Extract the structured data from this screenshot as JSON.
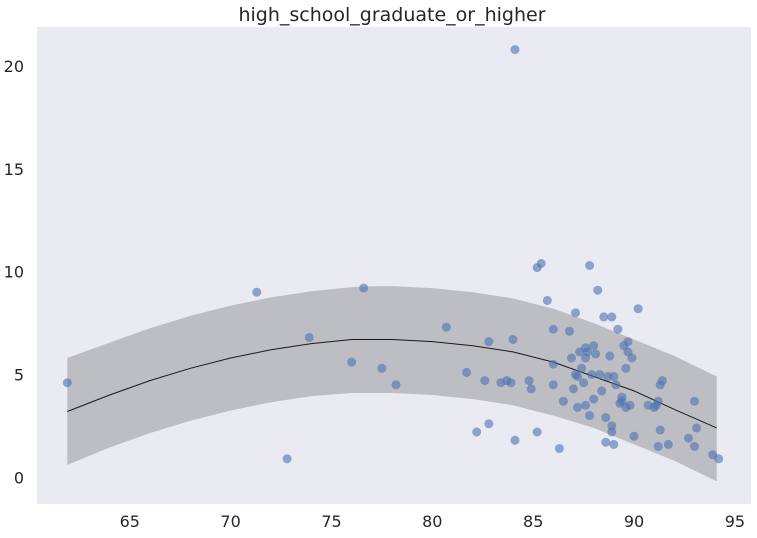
{
  "chart_data": {
    "type": "scatter",
    "title": "high_school_graduate_or_higher",
    "xlabel": "",
    "ylabel": "",
    "xlim": [
      60.4,
      95.8
    ],
    "ylim": [
      -1.3,
      21.9
    ],
    "xticks": [
      65,
      70,
      75,
      80,
      85,
      90,
      95
    ],
    "yticks": [
      0,
      5,
      10,
      15,
      20
    ],
    "grid": false,
    "colors": {
      "background": "#eaeaf2",
      "points": "#4c72b0",
      "band": "#a9a9b0",
      "fit_line": "#1a1a1a"
    },
    "points": [
      [
        61.9,
        4.6
      ],
      [
        71.3,
        9.0
      ],
      [
        72.8,
        0.9
      ],
      [
        73.9,
        6.8
      ],
      [
        76.0,
        5.6
      ],
      [
        76.6,
        9.2
      ],
      [
        77.5,
        5.3
      ],
      [
        78.2,
        4.5
      ],
      [
        80.7,
        7.3
      ],
      [
        81.7,
        5.1
      ],
      [
        82.2,
        2.2
      ],
      [
        82.6,
        4.7
      ],
      [
        82.8,
        2.6
      ],
      [
        82.8,
        6.6
      ],
      [
        83.4,
        4.6
      ],
      [
        83.7,
        4.7
      ],
      [
        83.9,
        4.6
      ],
      [
        84.0,
        6.7
      ],
      [
        84.1,
        20.8
      ],
      [
        84.1,
        1.8
      ],
      [
        84.8,
        4.7
      ],
      [
        84.9,
        4.3
      ],
      [
        85.2,
        2.2
      ],
      [
        85.2,
        10.2
      ],
      [
        85.4,
        10.4
      ],
      [
        85.7,
        8.6
      ],
      [
        86.0,
        7.2
      ],
      [
        86.0,
        5.5
      ],
      [
        86.0,
        4.5
      ],
      [
        86.3,
        1.4
      ],
      [
        86.5,
        3.7
      ],
      [
        86.8,
        7.1
      ],
      [
        86.9,
        5.8
      ],
      [
        87.0,
        4.3
      ],
      [
        87.1,
        8.0
      ],
      [
        87.1,
        5.0
      ],
      [
        87.2,
        4.9
      ],
      [
        87.2,
        3.4
      ],
      [
        87.3,
        6.1
      ],
      [
        87.4,
        5.3
      ],
      [
        87.5,
        4.6
      ],
      [
        87.6,
        6.3
      ],
      [
        87.6,
        5.8
      ],
      [
        87.6,
        3.5
      ],
      [
        87.7,
        6.1
      ],
      [
        87.8,
        10.3
      ],
      [
        87.8,
        3.0
      ],
      [
        87.9,
        5.0
      ],
      [
        88.0,
        6.4
      ],
      [
        88.0,
        3.8
      ],
      [
        88.1,
        6.0
      ],
      [
        88.2,
        9.1
      ],
      [
        88.3,
        5.0
      ],
      [
        88.4,
        4.2
      ],
      [
        88.5,
        7.8
      ],
      [
        88.6,
        2.9
      ],
      [
        88.6,
        1.7
      ],
      [
        88.7,
        4.9
      ],
      [
        88.8,
        5.9
      ],
      [
        88.9,
        7.8
      ],
      [
        88.9,
        2.5
      ],
      [
        88.9,
        2.2
      ],
      [
        89.0,
        1.6
      ],
      [
        89.0,
        4.9
      ],
      [
        89.1,
        4.5
      ],
      [
        89.2,
        7.2
      ],
      [
        89.3,
        3.6
      ],
      [
        89.4,
        3.9
      ],
      [
        89.4,
        3.7
      ],
      [
        89.5,
        6.4
      ],
      [
        89.6,
        3.4
      ],
      [
        89.6,
        5.3
      ],
      [
        89.7,
        6.6
      ],
      [
        89.7,
        6.1
      ],
      [
        89.8,
        3.5
      ],
      [
        89.9,
        5.8
      ],
      [
        90.0,
        2.0
      ],
      [
        90.2,
        8.2
      ],
      [
        90.7,
        3.5
      ],
      [
        91.0,
        3.4
      ],
      [
        91.1,
        3.5
      ],
      [
        91.2,
        1.5
      ],
      [
        91.2,
        3.7
      ],
      [
        91.3,
        2.3
      ],
      [
        91.3,
        4.5
      ],
      [
        91.4,
        4.7
      ],
      [
        91.7,
        1.6
      ],
      [
        92.7,
        1.9
      ],
      [
        93.0,
        3.7
      ],
      [
        93.0,
        1.5
      ],
      [
        93.1,
        2.4
      ],
      [
        93.9,
        1.1
      ],
      [
        94.2,
        0.9
      ]
    ],
    "fit": {
      "x": [
        61.9,
        64,
        66,
        68,
        70,
        72,
        74,
        76,
        77.3,
        78,
        80,
        82,
        84,
        86,
        88,
        90,
        92,
        94.1
      ],
      "y": [
        3.2,
        4.0,
        4.7,
        5.3,
        5.8,
        6.2,
        6.5,
        6.7,
        6.7,
        6.7,
        6.6,
        6.4,
        6.1,
        5.6,
        4.9,
        4.2,
        3.3,
        2.4
      ],
      "lower": [
        0.6,
        1.45,
        2.15,
        2.75,
        3.25,
        3.65,
        3.95,
        4.1,
        4.1,
        4.1,
        4.0,
        3.8,
        3.5,
        3.0,
        2.4,
        1.6,
        0.8,
        -0.2
      ],
      "upper": [
        5.8,
        6.55,
        7.25,
        7.85,
        8.35,
        8.75,
        9.05,
        9.25,
        9.3,
        9.3,
        9.2,
        9.0,
        8.7,
        8.2,
        7.5,
        6.7,
        5.9,
        4.9
      ]
    }
  }
}
